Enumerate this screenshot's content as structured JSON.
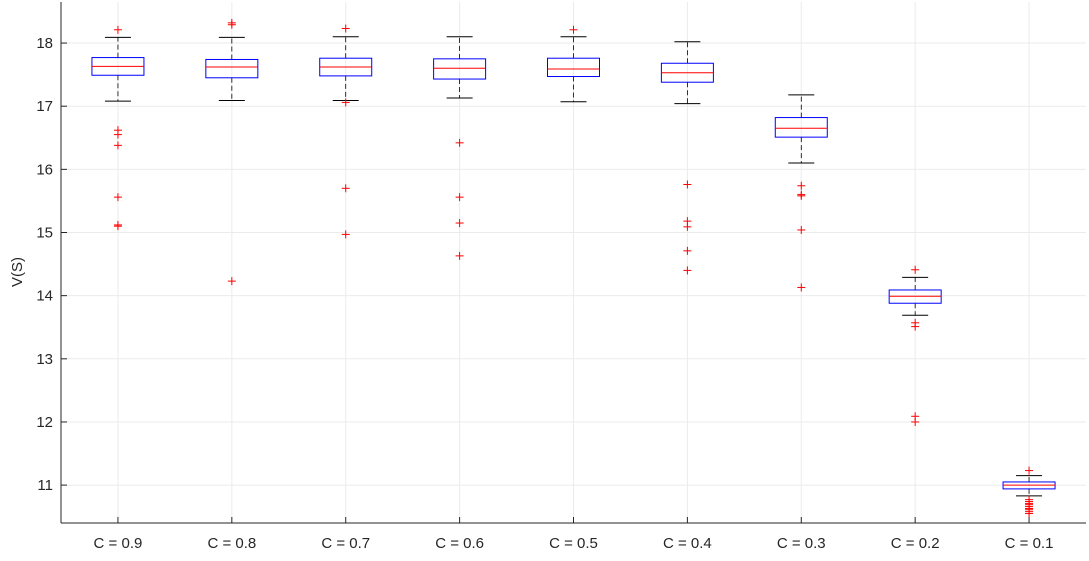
{
  "chart_data": {
    "type": "boxplot",
    "title": "",
    "xlabel": "",
    "ylabel": "V(S)",
    "ylim": [
      10.4,
      18.65
    ],
    "yticks": [
      11,
      12,
      13,
      14,
      15,
      16,
      17,
      18
    ],
    "grid": true,
    "categories": [
      "C = 0.9",
      "C = 0.8",
      "C = 0.7",
      "C = 0.6",
      "C = 0.5",
      "C = 0.4",
      "C = 0.3",
      "C = 0.2",
      "C = 0.1"
    ],
    "boxes": [
      {
        "category": "C = 0.9",
        "whisker_low": 17.08,
        "q1": 17.49,
        "median": 17.63,
        "q3": 17.77,
        "whisker_high": 18.09,
        "outliers": [
          18.21,
          16.62,
          16.55,
          16.38,
          15.56,
          15.12,
          15.1
        ]
      },
      {
        "category": "C = 0.8",
        "whisker_low": 17.09,
        "q1": 17.45,
        "median": 17.62,
        "q3": 17.74,
        "whisker_high": 18.09,
        "outliers": [
          18.32,
          18.29,
          14.23
        ]
      },
      {
        "category": "C = 0.7",
        "whisker_low": 17.09,
        "q1": 17.48,
        "median": 17.62,
        "q3": 17.76,
        "whisker_high": 18.1,
        "outliers": [
          18.23,
          17.06,
          15.7,
          14.97
        ]
      },
      {
        "category": "C = 0.6",
        "whisker_low": 17.13,
        "q1": 17.43,
        "median": 17.6,
        "q3": 17.75,
        "whisker_high": 18.1,
        "outliers": [
          16.42,
          15.56,
          15.15,
          14.63
        ]
      },
      {
        "category": "C = 0.5",
        "whisker_low": 17.07,
        "q1": 17.47,
        "median": 17.59,
        "q3": 17.76,
        "whisker_high": 18.1,
        "outliers": [
          18.21
        ]
      },
      {
        "category": "C = 0.4",
        "whisker_low": 17.04,
        "q1": 17.38,
        "median": 17.53,
        "q3": 17.68,
        "whisker_high": 18.02,
        "outliers": [
          15.76,
          15.18,
          15.09,
          14.71,
          14.4
        ]
      },
      {
        "category": "C = 0.3",
        "whisker_low": 16.1,
        "q1": 16.51,
        "median": 16.65,
        "q3": 16.82,
        "whisker_high": 17.18,
        "outliers": [
          15.74,
          15.6,
          15.58,
          15.04,
          14.13
        ]
      },
      {
        "category": "C = 0.2",
        "whisker_low": 13.69,
        "q1": 13.88,
        "median": 13.99,
        "q3": 14.09,
        "whisker_high": 14.29,
        "outliers": [
          14.41,
          13.57,
          13.51,
          12.09,
          12.0
        ]
      },
      {
        "category": "C = 0.1",
        "whisker_low": 10.83,
        "q1": 10.94,
        "median": 11.0,
        "q3": 11.05,
        "whisker_high": 11.15,
        "outliers": [
          11.23,
          10.77,
          10.74,
          10.71,
          10.69,
          10.66,
          10.63,
          10.61,
          10.58,
          10.55
        ]
      }
    ],
    "colors": {
      "box": "#0000ff",
      "median": "#ff0000",
      "whisker": "#000000",
      "outlier": "#ff0000",
      "grid": "#ebebeb",
      "axis": "#262626"
    }
  }
}
